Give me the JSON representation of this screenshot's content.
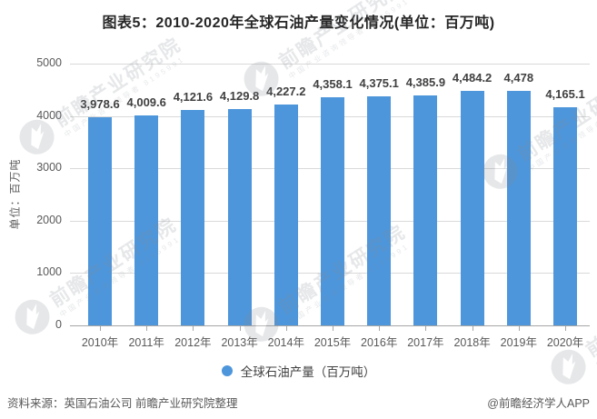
{
  "header": {
    "title": "图表5：2010-2020年全球石油产量变化情况(单位：百万吨)"
  },
  "chart_data": {
    "type": "bar",
    "title": "图表5：2010-2020年全球石油产量变化情况(单位：百万吨)",
    "categories": [
      "2010年",
      "2011年",
      "2012年",
      "2013年",
      "2014年",
      "2015年",
      "2016年",
      "2017年",
      "2018年",
      "2019年",
      "2020年"
    ],
    "series": [
      {
        "name": "全球石油产量（百万吨）",
        "values": [
          3978.6,
          4009.6,
          4121.6,
          4129.8,
          4227.2,
          4358.1,
          4375.1,
          4385.9,
          4484.2,
          4478,
          4165.1
        ],
        "labels": [
          "3,978.6",
          "4,009.6",
          "4,121.6",
          "4,129.8",
          "4,227.2",
          "4,358.1",
          "4,375.1",
          "4,385.9",
          "4,484.2",
          "4,478",
          "4,165.1"
        ],
        "color": "#4d96db"
      }
    ],
    "xlabel": "",
    "ylabel": "单位：百万吨",
    "ylim": [
      0,
      5000
    ],
    "yticks": [
      0,
      1000,
      2000,
      3000,
      4000,
      5000
    ],
    "grid": true,
    "legend_position": "bottom-center"
  },
  "legend": {
    "items": [
      {
        "label": "全球石油产量（百万吨）",
        "marker_color": "#4d96db"
      }
    ]
  },
  "watermark": {
    "brand": "前瞻产业研究院",
    "tagline": "中国产业咨询领导者",
    "digits": "8195991"
  },
  "footer": {
    "source": "资料来源：英国石油公司 前瞻产业研究院整理",
    "credit": "@前瞻经济学人APP"
  },
  "colors": {
    "bar": "#4d96db",
    "gridline": "#d9d9d9",
    "axis": "#a6a6a6",
    "data_label": "#404040",
    "tick_text": "#595959",
    "title_text": "#262626"
  }
}
